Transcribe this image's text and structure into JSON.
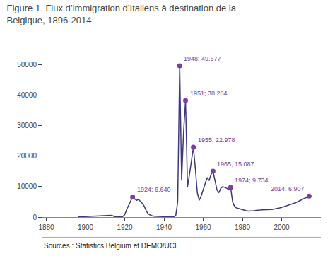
{
  "chart_data": {
    "type": "line",
    "title": "Figure 1. Flux d’immigration d’Italiens à destination de la\nBelgique, 1896-2014",
    "source": "Sources : Statistics Belgium et DEMO/UCL",
    "color": "#3d3a7a",
    "x": [
      1896,
      1897,
      1898,
      1899,
      1900,
      1901,
      1902,
      1903,
      1904,
      1905,
      1906,
      1907,
      1908,
      1909,
      1910,
      1911,
      1912,
      1913,
      1914,
      1915,
      1916,
      1917,
      1918,
      1919,
      1920,
      1921,
      1922,
      1923,
      1924,
      1925,
      1926,
      1927,
      1928,
      1929,
      1930,
      1931,
      1932,
      1933,
      1934,
      1935,
      1936,
      1937,
      1938,
      1939,
      1940,
      1941,
      1942,
      1943,
      1944,
      1945,
      1946,
      1947,
      1948,
      1949,
      1950,
      1951,
      1952,
      1953,
      1954,
      1955,
      1956,
      1957,
      1958,
      1959,
      1960,
      1961,
      1962,
      1963,
      1964,
      1965,
      1966,
      1967,
      1968,
      1969,
      1970,
      1971,
      1972,
      1973,
      1974,
      1975,
      1976,
      1977,
      1978,
      1979,
      1980,
      1981,
      1982,
      1983,
      1984,
      1985,
      1986,
      1987,
      1988,
      1989,
      1990,
      1991,
      1992,
      1993,
      1994,
      1995,
      1996,
      1997,
      1998,
      1999,
      2000,
      2001,
      2002,
      2003,
      2004,
      2005,
      2006,
      2007,
      2008,
      2009,
      2010,
      2011,
      2012,
      2013,
      2014
    ],
    "values": [
      50,
      80,
      100,
      120,
      150,
      180,
      200,
      250,
      300,
      350,
      400,
      450,
      500,
      520,
      540,
      560,
      580,
      600,
      400,
      100,
      80,
      60,
      50,
      200,
      800,
      2500,
      4000,
      5500,
      6640,
      6000,
      5500,
      5800,
      5200,
      4500,
      3500,
      2000,
      1000,
      600,
      400,
      300,
      250,
      200,
      150,
      100,
      50,
      30,
      20,
      20,
      30,
      100,
      500,
      5000,
      49677,
      12000,
      28000,
      38284,
      10000,
      14000,
      18000,
      22978,
      16000,
      8000,
      5500,
      7000,
      9000,
      11000,
      13000,
      12000,
      14000,
      15087,
      12000,
      9000,
      8000,
      9500,
      10000,
      9800,
      9500,
      9000,
      9734,
      5000,
      3500,
      3000,
      2800,
      2600,
      2400,
      2200,
      2100,
      2000,
      2000,
      2100,
      2100,
      2200,
      2200,
      2300,
      2400,
      2400,
      2500,
      2500,
      2500,
      2500,
      2600,
      2700,
      2800,
      3000,
      3200,
      3400,
      3600,
      3800,
      4000,
      4200,
      4400,
      4700,
      5000,
      5300,
      5600,
      5900,
      6200,
      6500,
      6907
    ],
    "xlim": [
      1878,
      2020
    ],
    "ylim": [
      0,
      55000
    ],
    "xticks": [
      1880,
      1900,
      1920,
      1940,
      1960,
      1980,
      2000
    ],
    "yticks": [
      0,
      10000,
      20000,
      30000,
      40000,
      50000
    ],
    "grid": false,
    "annotations": [
      {
        "x": 1948,
        "y": 49677,
        "text": "1948; 49.677",
        "color": "#7b3fa0"
      },
      {
        "x": 1951,
        "y": 38284,
        "text": "1951; 38.284",
        "color": "#7b3fa0"
      },
      {
        "x": 1955,
        "y": 22978,
        "text": "1955; 22.978",
        "color": "#7b3fa0"
      },
      {
        "x": 1965,
        "y": 15087,
        "text": "1965; 15.087",
        "color": "#7b3fa0"
      },
      {
        "x": 1974,
        "y": 9734,
        "text": "1974; 9.734",
        "color": "#7b3fa0"
      },
      {
        "x": 1924,
        "y": 6640,
        "text": "1924; 6.640",
        "color": "#7b3fa0"
      },
      {
        "x": 2014,
        "y": 6907,
        "text": "2014; 6.907",
        "color": "#7b3fa0"
      }
    ]
  }
}
